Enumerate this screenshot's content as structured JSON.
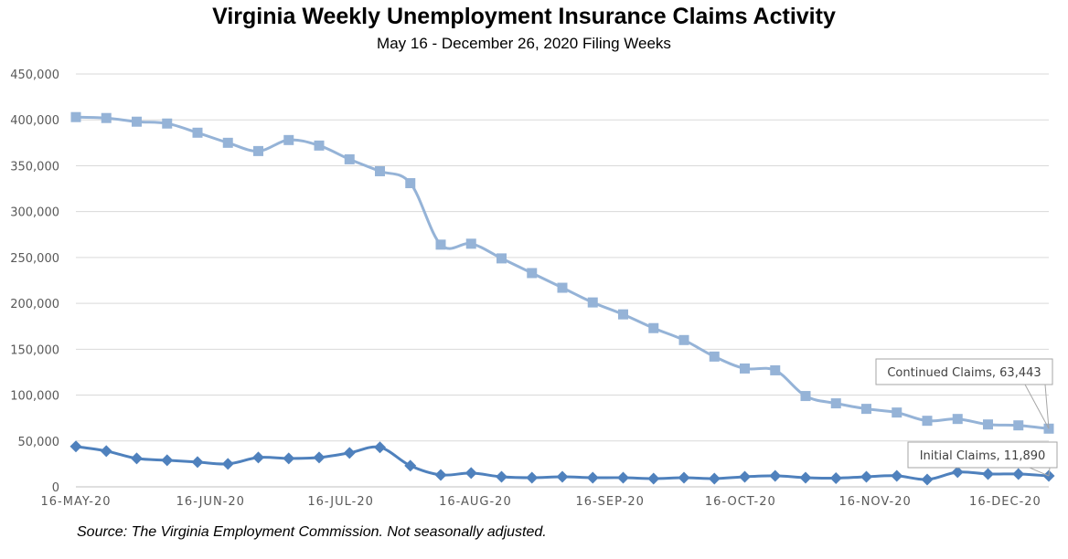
{
  "chart_data": {
    "type": "line",
    "title": "Virginia Weekly Unemployment Insurance Claims Activity",
    "subtitle": "May 16 - December 26, 2020 Filing Weeks",
    "source": "Source: The Virginia Employment Commission. Not seasonally adjusted.",
    "ylim": [
      0,
      450000
    ],
    "y_ticks": [
      "0",
      "50,000",
      "100,000",
      "150,000",
      "200,000",
      "250,000",
      "300,000",
      "350,000",
      "400,000",
      "450,000"
    ],
    "x_tick_labels": [
      "16-MAY-20",
      "16-JUN-20",
      "16-JUL-20",
      "16-AUG-20",
      "16-SEP-20",
      "16-OCT-20",
      "16-NOV-20",
      "16-DEC-20"
    ],
    "x_tick_week_index": [
      0,
      4.43,
      8.71,
      13.14,
      17.57,
      21.86,
      26.29,
      30.57
    ],
    "x": [
      "2020-05-16",
      "2020-05-23",
      "2020-05-30",
      "2020-06-06",
      "2020-06-13",
      "2020-06-20",
      "2020-06-27",
      "2020-07-04",
      "2020-07-11",
      "2020-07-18",
      "2020-07-25",
      "2020-08-01",
      "2020-08-08",
      "2020-08-15",
      "2020-08-22",
      "2020-08-29",
      "2020-09-05",
      "2020-09-12",
      "2020-09-19",
      "2020-09-26",
      "2020-10-03",
      "2020-10-10",
      "2020-10-17",
      "2020-10-24",
      "2020-10-31",
      "2020-11-07",
      "2020-11-14",
      "2020-11-21",
      "2020-11-28",
      "2020-12-05",
      "2020-12-12",
      "2020-12-19",
      "2020-12-26"
    ],
    "grid": true,
    "series": [
      {
        "name": "Continued Claims",
        "color": "#95b3d7",
        "marker": "square",
        "values": [
          403000,
          402000,
          398000,
          396000,
          386000,
          375000,
          366000,
          378000,
          372000,
          357000,
          344000,
          331000,
          264000,
          265000,
          249000,
          233000,
          217000,
          201000,
          188000,
          173000,
          160000,
          142000,
          129000,
          127000,
          99000,
          91000,
          85000,
          81000,
          72000,
          74000,
          68000,
          67000,
          63443
        ]
      },
      {
        "name": "Initial Claims",
        "color": "#4f81bd",
        "marker": "diamond",
        "values": [
          44000,
          39000,
          31000,
          29000,
          27000,
          25000,
          32000,
          31000,
          32000,
          37000,
          43000,
          23000,
          13000,
          15000,
          11000,
          10000,
          11000,
          10000,
          10000,
          9000,
          10000,
          9000,
          11000,
          12000,
          10000,
          9500,
          11000,
          12000,
          8000,
          16000,
          14000,
          14000,
          11890
        ]
      }
    ],
    "callouts": [
      {
        "series_index": 0,
        "label": "Continued Claims, 63,443"
      },
      {
        "series_index": 1,
        "label": "Initial Claims, 11,890"
      }
    ]
  }
}
